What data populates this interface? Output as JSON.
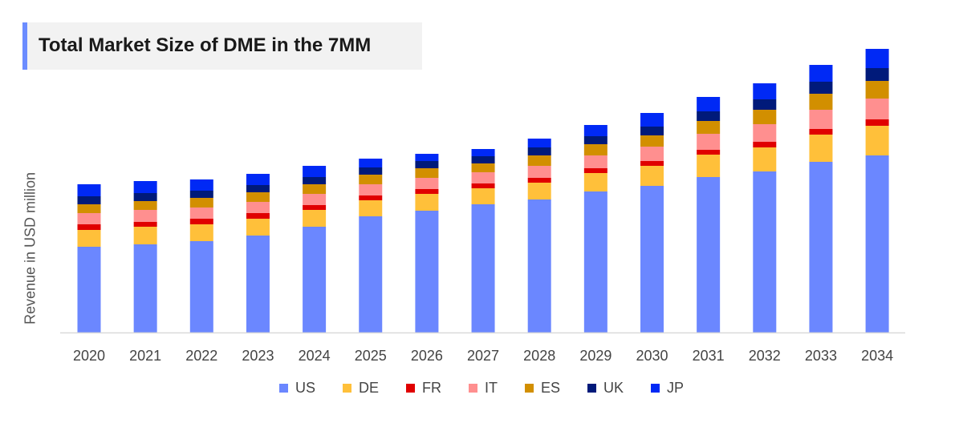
{
  "chart_data": {
    "type": "bar",
    "stacked": true,
    "title": "Total Market Size of DME in the 7MM",
    "xlabel": "",
    "ylabel": "Revenue in USD million",
    "y_tick_labels_shown": false,
    "ylim": [
      0,
      360
    ],
    "grid": false,
    "legend_position": "bottom",
    "categories": [
      "2020",
      "2021",
      "2022",
      "2023",
      "2024",
      "2025",
      "2026",
      "2027",
      "2028",
      "2029",
      "2030",
      "2031",
      "2032",
      "2033",
      "2034"
    ],
    "series": [
      {
        "name": "US",
        "color": "#6b87ff",
        "values": [
          107,
          110,
          114,
          121,
          132,
          145,
          152,
          160,
          166,
          176,
          183,
          194,
          201,
          213,
          221
        ]
      },
      {
        "name": "DE",
        "color": "#ffc03a",
        "values": [
          21,
          22,
          21,
          21,
          21,
          20,
          21,
          20,
          21,
          23,
          25,
          28,
          30,
          34,
          37
        ]
      },
      {
        "name": "FR",
        "color": "#e00000",
        "values": [
          7,
          6,
          7,
          7,
          6,
          6,
          6,
          6,
          6,
          6,
          6,
          6,
          7,
          7,
          8
        ]
      },
      {
        "name": "IT",
        "color": "#ff8f8f",
        "values": [
          14,
          15,
          14,
          14,
          14,
          14,
          14,
          14,
          15,
          16,
          18,
          20,
          22,
          24,
          26
        ]
      },
      {
        "name": "ES",
        "color": "#d28f00",
        "values": [
          11,
          11,
          12,
          12,
          12,
          12,
          12,
          11,
          13,
          14,
          14,
          16,
          18,
          20,
          22
        ]
      },
      {
        "name": "UK",
        "color": "#001a7a",
        "values": [
          10,
          10,
          9,
          9,
          9,
          9,
          9,
          9,
          10,
          10,
          11,
          12,
          13,
          15,
          16
        ]
      },
      {
        "name": "JP",
        "color": "#0029f5",
        "values": [
          15,
          15,
          14,
          14,
          14,
          11,
          9,
          9,
          11,
          14,
          17,
          18,
          20,
          21,
          24
        ]
      }
    ]
  }
}
